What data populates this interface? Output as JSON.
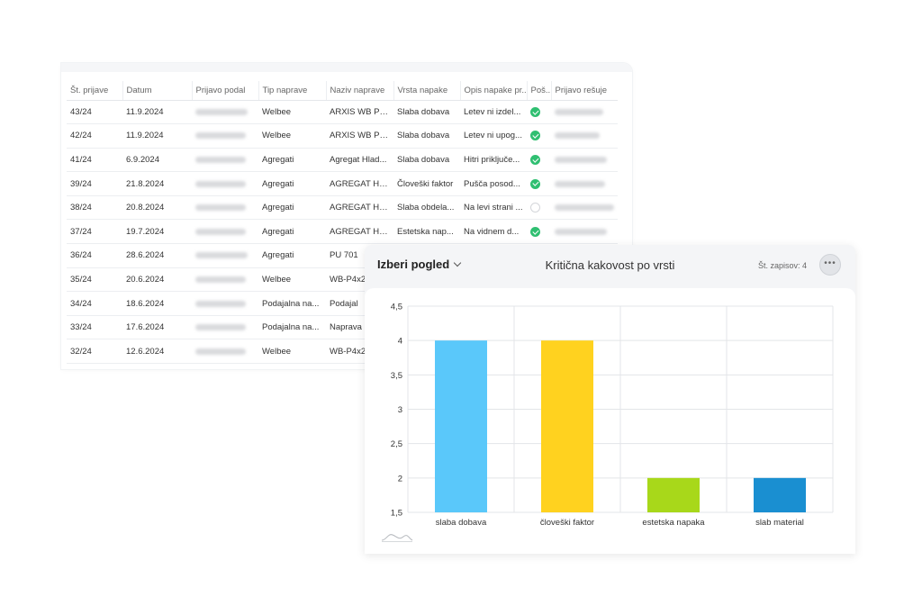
{
  "table": {
    "columns": [
      "Št. prijave",
      "Datum",
      "Prijavo podal",
      "Tip naprave",
      "Naziv naprave",
      "Vrsta napake",
      "Opis napake pr...",
      "Poš...",
      "Prijavo rešuje"
    ],
    "rows": [
      {
        "id": "43/24",
        "date": "11.9.2024",
        "type": "Welbee",
        "device": "ARXIS WB P4...",
        "defect": "Slaba dobava",
        "desc": "Letev ni izdel...",
        "status": "ok",
        "solver_blur": true
      },
      {
        "id": "42/24",
        "date": "11.9.2024",
        "type": "Welbee",
        "device": "ARXIS WB P4...",
        "defect": "Slaba dobava",
        "desc": "Letev ni upog...",
        "status": "ok",
        "solver_blur": true
      },
      {
        "id": "41/24",
        "date": "6.9.2024",
        "type": "Agregati",
        "device": "Agregat Hlad...",
        "defect": "Slaba dobava",
        "desc": "Hitri priključe...",
        "status": "ok",
        "solver_blur": true
      },
      {
        "id": "39/24",
        "date": "21.8.2024",
        "type": "Agregati",
        "device": "AGREGAT HL...",
        "defect": "Človeški faktor",
        "desc": "Pušča posod...",
        "status": "ok",
        "solver_blur": true
      },
      {
        "id": "38/24",
        "date": "20.8.2024",
        "type": "Agregati",
        "device": "AGREGAT HL...",
        "defect": "Slaba obdela...",
        "desc": "Na levi strani ...",
        "status": "none",
        "solver_blur": true
      },
      {
        "id": "37/24",
        "date": "19.7.2024",
        "type": "Agregati",
        "device": "AGREGAT HL...",
        "defect": "Estetska nap...",
        "desc": "Na vidnem d...",
        "status": "ok",
        "solver_blur": true
      },
      {
        "id": "36/24",
        "date": "28.6.2024",
        "type": "Agregati",
        "device": "PU 701",
        "defect": "",
        "desc": "",
        "status": "",
        "solver_blur": false
      },
      {
        "id": "35/24",
        "date": "20.6.2024",
        "type": "Welbee",
        "device": "WB-P4x2",
        "defect": "",
        "desc": "",
        "status": "",
        "solver_blur": false
      },
      {
        "id": "34/24",
        "date": "18.6.2024",
        "type": "Podajalna na...",
        "device": "Podajal",
        "defect": "",
        "desc": "",
        "status": "",
        "solver_blur": false
      },
      {
        "id": "33/24",
        "date": "17.6.2024",
        "type": "Podajalna na...",
        "device": "Naprava",
        "defect": "",
        "desc": "",
        "status": "",
        "solver_blur": false
      },
      {
        "id": "32/24",
        "date": "12.6.2024",
        "type": "Welbee",
        "device": "WB-P4x2",
        "defect": "",
        "desc": "",
        "status": "",
        "solver_blur": false
      }
    ]
  },
  "chart_panel": {
    "view_select_label": "Izberi pogled",
    "title": "Kritična kakovost po vrsti",
    "record_count": "Št. zapisov: 4",
    "more_label": "•••"
  },
  "chart_data": {
    "type": "bar",
    "title": "Kritična kakovost po vrsti",
    "categories": [
      "slaba dobava",
      "človeški faktor",
      "estetska napaka",
      "slab material"
    ],
    "values": [
      4,
      4,
      2,
      2
    ],
    "colors": [
      "#5ac8fa",
      "#ffd21f",
      "#a8d81a",
      "#1a8fd1"
    ],
    "ylim": [
      1.5,
      4.5
    ],
    "yticks": [
      "1,5",
      "2",
      "2,5",
      "3",
      "3,5",
      "4",
      "4,5"
    ],
    "grid": true,
    "xlabel": "",
    "ylabel": ""
  }
}
